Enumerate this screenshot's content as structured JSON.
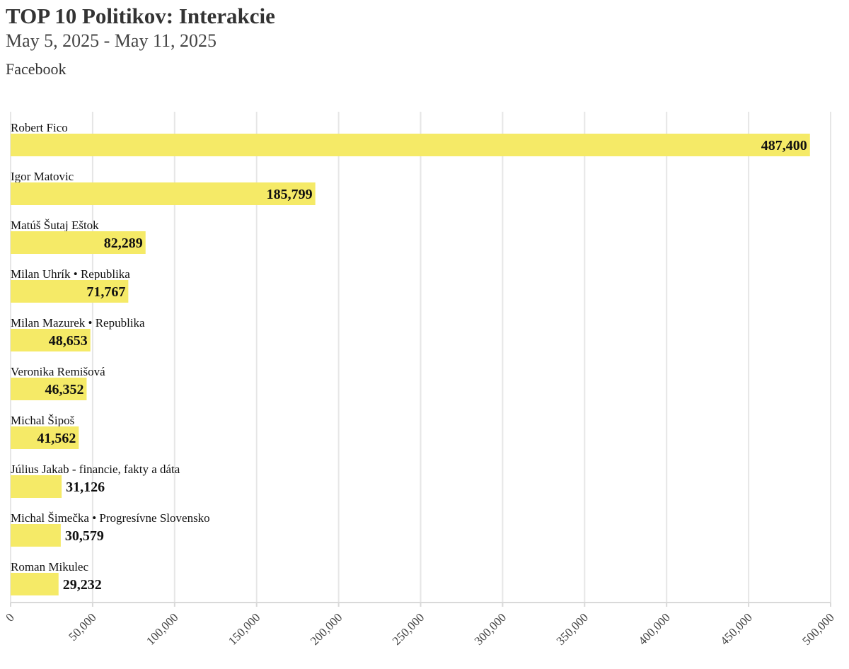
{
  "title": "TOP 10 Politikov: Interakcie",
  "subtitle": "May 5, 2025 - May 11, 2025",
  "platform": "Facebook",
  "colors": {
    "bar": "#f5ea67",
    "grid": "#e6e6e6",
    "axis": "#d9d9d9",
    "text": "#111111"
  },
  "chart_data": {
    "type": "bar",
    "orientation": "horizontal",
    "categories": [
      "Robert Fico",
      "Igor Matovic",
      "Matúš Šutaj Eštok",
      "Milan Uhrík • Republika",
      "Milan Mazurek • Republika",
      "Veronika Remišová",
      "Michal Šipoš",
      "Július Jakab - financie, fakty a dáta",
      "Michal Šimečka • Progresívne Slovensko",
      "Roman Mikulec"
    ],
    "values": [
      487400,
      185799,
      82289,
      71767,
      48653,
      46352,
      41562,
      31126,
      30579,
      29232
    ],
    "value_labels": [
      "487,400",
      "185,799",
      "82,289",
      "71,767",
      "48,653",
      "46,352",
      "41,562",
      "31,126",
      "30,579",
      "29,232"
    ],
    "xlim": [
      0,
      500000
    ],
    "xticks": [
      0,
      50000,
      100000,
      150000,
      200000,
      250000,
      300000,
      350000,
      400000,
      450000,
      500000
    ],
    "xtick_labels": [
      "0",
      "50,000",
      "100,000",
      "150,000",
      "200,000",
      "250,000",
      "300,000",
      "350,000",
      "400,000",
      "450,000",
      "500,000"
    ],
    "grid": true,
    "legend": "none"
  }
}
